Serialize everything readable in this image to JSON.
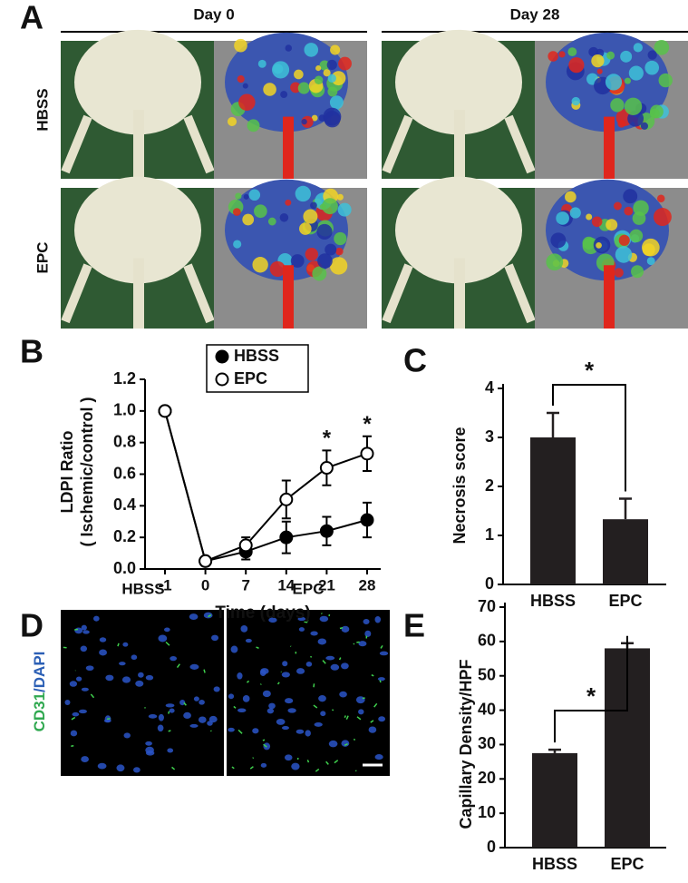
{
  "panel_a": {
    "label": "A",
    "columns": [
      "Day 0",
      "Day 28"
    ],
    "rows": [
      "HBSS",
      "EPC"
    ]
  },
  "chart_data": [
    {
      "type": "line",
      "panel_label": "B",
      "x_label": "Time (days)",
      "y_label": [
        "LDPI Ratio",
        "( Ischemic/control )"
      ],
      "categories": [
        "-1",
        "0",
        "7",
        "14",
        "21",
        "28"
      ],
      "series": [
        {
          "name": "HBSS",
          "color": "#000000",
          "filled": true,
          "values": [
            1.0,
            0.05,
            0.11,
            0.2,
            0.24,
            0.31
          ],
          "errors": [
            null,
            null,
            0.05,
            0.1,
            0.09,
            0.11
          ]
        },
        {
          "name": "EPC",
          "color": "#000000",
          "filled": false,
          "values": [
            1.0,
            0.05,
            0.15,
            0.44,
            0.64,
            0.73
          ],
          "errors": [
            null,
            null,
            0.05,
            0.12,
            0.11,
            0.11
          ]
        }
      ],
      "ylim": [
        0,
        1.2
      ],
      "yticks": [
        {
          "value": 0,
          "label": "0.0"
        },
        0.2,
        0.4,
        0.6,
        0.8,
        {
          "value": 1,
          "label": "1.0"
        },
        1.2
      ],
      "legend": "upper center",
      "annotations": [
        {
          "text": "*",
          "x": "21"
        },
        {
          "text": "*",
          "x": "28"
        }
      ]
    },
    {
      "type": "bar",
      "panel_label": "C",
      "y_label": "Necrosis score",
      "categories": [
        "HBSS",
        "EPC"
      ],
      "values": [
        3.0,
        1.33
      ],
      "errors": [
        0.5,
        0.42
      ],
      "color": "#231f20",
      "ylim": [
        0,
        4
      ],
      "yticks": [
        0,
        1,
        2,
        3,
        4
      ],
      "significance": {
        "text": "*",
        "between": [
          "HBSS",
          "EPC"
        ]
      }
    },
    {
      "type": "bar",
      "panel_label": "E",
      "y_label": "Capillary Density/HPF",
      "categories": [
        "HBSS",
        "EPC"
      ],
      "values": [
        27.5,
        58
      ],
      "errors": [
        1,
        1.5
      ],
      "color": "#231f20",
      "ylim": [
        0,
        70
      ],
      "yticks": [
        0,
        10,
        20,
        30,
        40,
        50,
        60,
        70
      ],
      "significance": {
        "text": "*",
        "between": [
          "HBSS",
          "EPC"
        ]
      }
    }
  ],
  "panel_d": {
    "label": "D",
    "columns": [
      "HBSS",
      "EPC"
    ],
    "stain": [
      "CD31",
      "/DAPI"
    ]
  }
}
